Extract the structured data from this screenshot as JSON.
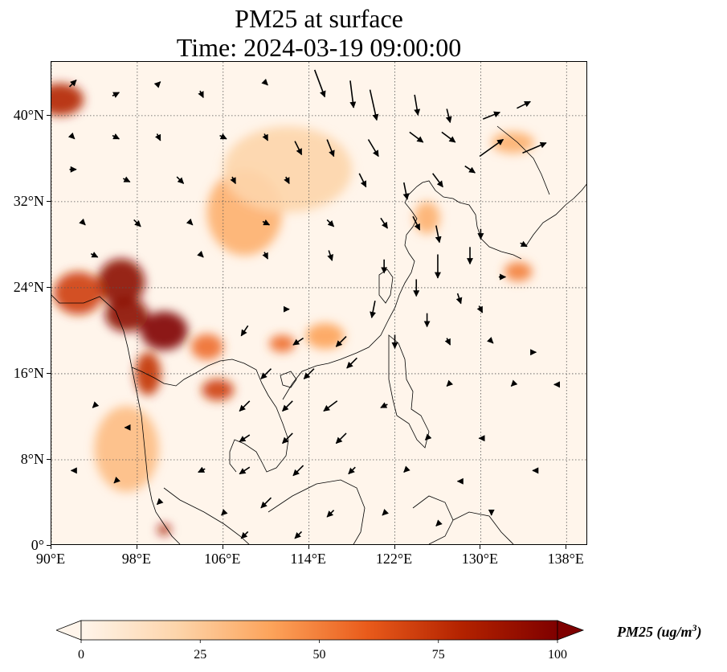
{
  "title": {
    "line1": "PM25 at surface",
    "line2": "Time: 2024-03-19 09:00:00"
  },
  "map": {
    "lon_range": [
      90,
      140
    ],
    "lat_range": [
      0,
      45
    ],
    "lat_ticks": [
      {
        "value": 0,
        "label": "0°"
      },
      {
        "value": 8,
        "label": "8°N"
      },
      {
        "value": 16,
        "label": "16°N"
      },
      {
        "value": 24,
        "label": "24°N"
      },
      {
        "value": 32,
        "label": "32°N"
      },
      {
        "value": 40,
        "label": "40°N"
      }
    ],
    "lon_ticks": [
      {
        "value": 90,
        "label": "90°E"
      },
      {
        "value": 98,
        "label": "98°E"
      },
      {
        "value": 106,
        "label": "106°E"
      },
      {
        "value": 114,
        "label": "114°E"
      },
      {
        "value": 122,
        "label": "122°E"
      },
      {
        "value": 130,
        "label": "130°E"
      },
      {
        "value": 138,
        "label": "138°E"
      }
    ],
    "gridlines": "dotted"
  },
  "colorbar": {
    "title_main": "PM25 (ug/m",
    "title_sup": "3",
    "title_end": ")",
    "range": [
      0,
      100
    ],
    "ticks": [
      {
        "value": 0,
        "label": "0"
      },
      {
        "value": 25,
        "label": "25"
      },
      {
        "value": 50,
        "label": "50"
      },
      {
        "value": 75,
        "label": "75"
      },
      {
        "value": 100,
        "label": "100"
      }
    ],
    "colors": [
      "#fff5eb",
      "#fdd5ab",
      "#fda35a",
      "#e95b1b",
      "#b32200",
      "#7f0000"
    ],
    "extend": "both"
  },
  "pollution_hotspots": [
    {
      "lon": 90.8,
      "lat": 41.5,
      "level": 80,
      "rx": 2.2,
      "ry": 1.5
    },
    {
      "lon": 96.5,
      "lat": 24.5,
      "level": 95,
      "rx": 2.2,
      "ry": 2.2
    },
    {
      "lon": 100.5,
      "lat": 20.0,
      "level": 100,
      "rx": 2.2,
      "ry": 1.8
    },
    {
      "lon": 97.0,
      "lat": 21.5,
      "level": 95,
      "rx": 2.0,
      "ry": 1.6
    },
    {
      "lon": 92.5,
      "lat": 23.5,
      "level": 70,
      "rx": 2.3,
      "ry": 2.0
    },
    {
      "lon": 99.0,
      "lat": 16.0,
      "level": 75,
      "rx": 1.2,
      "ry": 2.0
    },
    {
      "lon": 104.5,
      "lat": 18.5,
      "level": 55,
      "rx": 1.5,
      "ry": 1.2
    },
    {
      "lon": 105.5,
      "lat": 14.5,
      "level": 70,
      "rx": 1.5,
      "ry": 1.0
    },
    {
      "lon": 111.5,
      "lat": 18.8,
      "level": 55,
      "rx": 1.2,
      "ry": 0.8
    },
    {
      "lon": 115.5,
      "lat": 19.5,
      "level": 40,
      "rx": 1.8,
      "ry": 1.2
    },
    {
      "lon": 100.5,
      "lat": 1.5,
      "level": 85,
      "rx": 0.6,
      "ry": 0.5
    },
    {
      "lon": 133.5,
      "lat": 25.5,
      "level": 50,
      "rx": 1.3,
      "ry": 0.9
    },
    {
      "lon": 108.0,
      "lat": 31.0,
      "level": 35,
      "rx": 3.5,
      "ry": 4.0
    },
    {
      "lon": 125.0,
      "lat": 30.5,
      "level": 35,
      "rx": 1.2,
      "ry": 1.5
    },
    {
      "lon": 112.0,
      "lat": 35.0,
      "level": 20,
      "rx": 6.0,
      "ry": 4.0
    },
    {
      "lon": 97.0,
      "lat": 9.0,
      "level": 30,
      "rx": 3.0,
      "ry": 4.0
    },
    {
      "lon": 133.0,
      "lat": 37.5,
      "level": 35,
      "rx": 2.0,
      "ry": 1.0
    }
  ],
  "wind_arrows": [
    {
      "lon": 92,
      "lat": 43,
      "u": 2,
      "v": 2
    },
    {
      "lon": 96,
      "lat": 42,
      "u": 2,
      "v": 1
    },
    {
      "lon": 100,
      "lat": 43,
      "u": 1,
      "v": 1
    },
    {
      "lon": 104,
      "lat": 42,
      "u": 1,
      "v": -2
    },
    {
      "lon": 110,
      "lat": 43,
      "u": 1,
      "v": -1
    },
    {
      "lon": 115,
      "lat": 43,
      "u": 3,
      "v": -8
    },
    {
      "lon": 118,
      "lat": 42,
      "u": 1,
      "v": -8
    },
    {
      "lon": 120,
      "lat": 41,
      "u": 2,
      "v": -9
    },
    {
      "lon": 124,
      "lat": 41,
      "u": 1,
      "v": -6
    },
    {
      "lon": 127,
      "lat": 40,
      "u": 1,
      "v": -4
    },
    {
      "lon": 131,
      "lat": 40,
      "u": 5,
      "v": 2
    },
    {
      "lon": 134,
      "lat": 41,
      "u": 4,
      "v": 2
    },
    {
      "lon": 92,
      "lat": 38,
      "u": 1,
      "v": -1
    },
    {
      "lon": 96,
      "lat": 38,
      "u": 2,
      "v": -1
    },
    {
      "lon": 100,
      "lat": 38,
      "u": 1,
      "v": -2
    },
    {
      "lon": 106,
      "lat": 38,
      "u": 2,
      "v": -1
    },
    {
      "lon": 110,
      "lat": 38,
      "u": 1,
      "v": -2
    },
    {
      "lon": 113,
      "lat": 37,
      "u": 2,
      "v": -4
    },
    {
      "lon": 116,
      "lat": 37,
      "u": 2,
      "v": -5
    },
    {
      "lon": 120,
      "lat": 37,
      "u": 3,
      "v": -5
    },
    {
      "lon": 124,
      "lat": 38,
      "u": 4,
      "v": -3
    },
    {
      "lon": 127,
      "lat": 38,
      "u": 4,
      "v": -3
    },
    {
      "lon": 131,
      "lat": 37,
      "u": 7,
      "v": 5
    },
    {
      "lon": 135,
      "lat": 37,
      "u": 7,
      "v": 3
    },
    {
      "lon": 92,
      "lat": 35,
      "u": 2,
      "v": 0
    },
    {
      "lon": 97,
      "lat": 34,
      "u": 2,
      "v": -1
    },
    {
      "lon": 102,
      "lat": 34,
      "u": 2,
      "v": -2
    },
    {
      "lon": 107,
      "lat": 34,
      "u": 1,
      "v": -2
    },
    {
      "lon": 112,
      "lat": 34,
      "u": 1,
      "v": -2
    },
    {
      "lon": 119,
      "lat": 34,
      "u": 2,
      "v": -4
    },
    {
      "lon": 123,
      "lat": 33,
      "u": 1,
      "v": -5
    },
    {
      "lon": 126,
      "lat": 34,
      "u": 3,
      "v": -4
    },
    {
      "lon": 129,
      "lat": 35,
      "u": 3,
      "v": -2
    },
    {
      "lon": 93,
      "lat": 30,
      "u": 1,
      "v": -1
    },
    {
      "lon": 98,
      "lat": 30,
      "u": 2,
      "v": -2
    },
    {
      "lon": 103,
      "lat": 30,
      "u": 1,
      "v": -1
    },
    {
      "lon": 110,
      "lat": 30,
      "u": 2,
      "v": -1
    },
    {
      "lon": 116,
      "lat": 30,
      "u": 2,
      "v": -2
    },
    {
      "lon": 121,
      "lat": 30,
      "u": 2,
      "v": -3
    },
    {
      "lon": 124,
      "lat": 30,
      "u": 2,
      "v": -4
    },
    {
      "lon": 126,
      "lat": 29,
      "u": 1,
      "v": -5
    },
    {
      "lon": 130,
      "lat": 29,
      "u": 0,
      "v": -3
    },
    {
      "lon": 134,
      "lat": 28,
      "u": 2,
      "v": -1
    },
    {
      "lon": 94,
      "lat": 27,
      "u": 2,
      "v": -1
    },
    {
      "lon": 104,
      "lat": 27,
      "u": 1,
      "v": -1
    },
    {
      "lon": 110,
      "lat": 27,
      "u": 1,
      "v": -2
    },
    {
      "lon": 116,
      "lat": 27,
      "u": 1,
      "v": -3
    },
    {
      "lon": 121,
      "lat": 26,
      "u": 0,
      "v": -4
    },
    {
      "lon": 126,
      "lat": 26,
      "u": 0,
      "v": -7
    },
    {
      "lon": 129,
      "lat": 27,
      "u": 0,
      "v": -5
    },
    {
      "lon": 132,
      "lat": 25,
      "u": 2,
      "v": 0
    },
    {
      "lon": 124,
      "lat": 24,
      "u": 0,
      "v": -5
    },
    {
      "lon": 128,
      "lat": 23,
      "u": 1,
      "v": -3
    },
    {
      "lon": 120,
      "lat": 22,
      "u": -1,
      "v": -5
    },
    {
      "lon": 125,
      "lat": 21,
      "u": 0,
      "v": -4
    },
    {
      "lon": 130,
      "lat": 22,
      "u": 1,
      "v": -2
    },
    {
      "lon": 112,
      "lat": 22,
      "u": 1,
      "v": 0
    },
    {
      "lon": 108,
      "lat": 20,
      "u": -2,
      "v": -3
    },
    {
      "lon": 113,
      "lat": 19,
      "u": -3,
      "v": -2
    },
    {
      "lon": 117,
      "lat": 19,
      "u": -3,
      "v": -3
    },
    {
      "lon": 122,
      "lat": 19,
      "u": 0,
      "v": -4
    },
    {
      "lon": 127,
      "lat": 19,
      "u": 1,
      "v": -2
    },
    {
      "lon": 131,
      "lat": 19,
      "u": 1,
      "v": -1
    },
    {
      "lon": 135,
      "lat": 18,
      "u": 1,
      "v": 0
    },
    {
      "lon": 110,
      "lat": 16,
      "u": -3,
      "v": -3
    },
    {
      "lon": 114,
      "lat": 16,
      "u": -3,
      "v": -3
    },
    {
      "lon": 118,
      "lat": 17,
      "u": -3,
      "v": -3
    },
    {
      "lon": 127,
      "lat": 15,
      "u": -1,
      "v": -1
    },
    {
      "lon": 133,
      "lat": 15,
      "u": -1,
      "v": -1
    },
    {
      "lon": 137,
      "lat": 15,
      "u": -1,
      "v": 0
    },
    {
      "lon": 108,
      "lat": 13,
      "u": -3,
      "v": -3
    },
    {
      "lon": 112,
      "lat": 13,
      "u": -3,
      "v": -3
    },
    {
      "lon": 116,
      "lat": 13,
      "u": -4,
      "v": -3
    },
    {
      "lon": 121,
      "lat": 13,
      "u": -2,
      "v": -1
    },
    {
      "lon": 108,
      "lat": 10,
      "u": -3,
      "v": -2
    },
    {
      "lon": 112,
      "lat": 10,
      "u": -3,
      "v": -3
    },
    {
      "lon": 117,
      "lat": 10,
      "u": -3,
      "v": -3
    },
    {
      "lon": 125,
      "lat": 10,
      "u": -1,
      "v": -1
    },
    {
      "lon": 130,
      "lat": 10,
      "u": -1,
      "v": 0
    },
    {
      "lon": 94,
      "lat": 13,
      "u": -1,
      "v": -1
    },
    {
      "lon": 97,
      "lat": 11,
      "u": -1,
      "v": 0
    },
    {
      "lon": 92,
      "lat": 7,
      "u": -1,
      "v": 0
    },
    {
      "lon": 96,
      "lat": 6,
      "u": -1,
      "v": -1
    },
    {
      "lon": 104,
      "lat": 7,
      "u": -2,
      "v": -1
    },
    {
      "lon": 108,
      "lat": 7,
      "u": -3,
      "v": -2
    },
    {
      "lon": 113,
      "lat": 7,
      "u": -3,
      "v": -3
    },
    {
      "lon": 118,
      "lat": 7,
      "u": -2,
      "v": -2
    },
    {
      "lon": 123,
      "lat": 7,
      "u": -1,
      "v": -1
    },
    {
      "lon": 128,
      "lat": 6,
      "u": -1,
      "v": 0
    },
    {
      "lon": 135,
      "lat": 7,
      "u": -1,
      "v": 0
    },
    {
      "lon": 100,
      "lat": 4,
      "u": -1,
      "v": -1
    },
    {
      "lon": 106,
      "lat": 3,
      "u": -1,
      "v": -1
    },
    {
      "lon": 110,
      "lat": 4,
      "u": -3,
      "v": -3
    },
    {
      "lon": 116,
      "lat": 3,
      "u": -2,
      "v": -2
    },
    {
      "lon": 121,
      "lat": 3,
      "u": -1,
      "v": -1
    },
    {
      "lon": 126,
      "lat": 2,
      "u": -1,
      "v": -1
    },
    {
      "lon": 131,
      "lat": 3,
      "u": 0,
      "v": -1
    },
    {
      "lon": 108,
      "lat": 1,
      "u": -2,
      "v": -2
    },
    {
      "lon": 113,
      "lat": 1,
      "u": -2,
      "v": -2
    }
  ]
}
